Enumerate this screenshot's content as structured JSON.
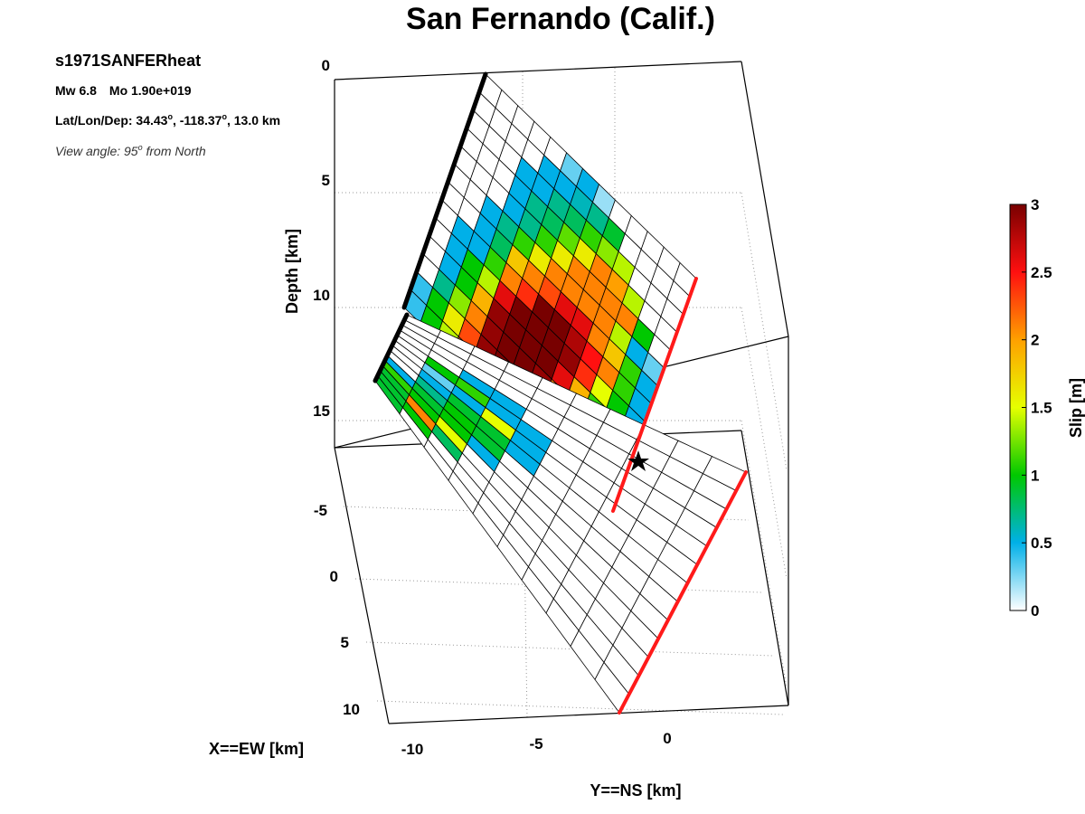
{
  "title": "San Fernando (Calif.)",
  "info": {
    "event_id": "s1971SANFERheat",
    "magnitude": "Mw 6.8",
    "moment": "Mo 1.90e+019",
    "location_prefix": "Lat/Lon/Dep: 34.43",
    "location_mid1": ", -118.37",
    "location_suffix": ", 13.0 km",
    "degree_mark": "o",
    "view_prefix": "View angle:  95",
    "view_suffix": " from North"
  },
  "colorbar": {
    "label": "Slip [m]",
    "ticks": [
      "0",
      "0.5",
      "1",
      "1.5",
      "2",
      "2.5",
      "3"
    ],
    "max": 3
  },
  "chart_data": {
    "type": "heatmap",
    "title": "San Fernando (Calif.)",
    "zlabel": "Depth [km]",
    "xlabel": "X==EW [km]",
    "ylabel": "Y==NS [km]",
    "z_ticks": [
      "0",
      "5",
      "10",
      "15"
    ],
    "x_ticks": [
      "-5",
      "0",
      "5",
      "10"
    ],
    "y_ticks": [
      "-10",
      "-5",
      "0"
    ],
    "grid": true,
    "colormap": "white-blue-green-yellow-red-darkred",
    "slip_units": "m",
    "segments": [
      {
        "name": "upper",
        "slip": [
          [
            0.4,
            0.4,
            0.0,
            0.0,
            0.0,
            0.0,
            0.0,
            0.0,
            0.0,
            0.0,
            0.0,
            0.0,
            0.0
          ],
          [
            1.0,
            1.0,
            0.7,
            0.5,
            0.5,
            0.5,
            0.0,
            0.0,
            0.0,
            0.0,
            0.0,
            0.0,
            0.0
          ],
          [
            1.4,
            1.6,
            1.3,
            1.0,
            1.0,
            0.5,
            0.5,
            0.5,
            0.0,
            0.0,
            0.0,
            0.0,
            0.0
          ],
          [
            2.1,
            2.3,
            2.1,
            1.9,
            1.4,
            1.1,
            0.8,
            0.7,
            0.5,
            0.5,
            0.5,
            0.0,
            0.0
          ],
          [
            2.4,
            2.9,
            2.9,
            2.9,
            2.6,
            2.1,
            1.8,
            1.1,
            0.7,
            0.7,
            0.5,
            0.5,
            0.0
          ],
          [
            2.6,
            3.0,
            3.0,
            3.0,
            3.0,
            2.4,
            2.1,
            1.6,
            1.1,
            0.8,
            0.7,
            0.5,
            0.3
          ],
          [
            2.3,
            3.0,
            3.0,
            3.0,
            3.0,
            3.0,
            2.3,
            2.1,
            1.6,
            1.2,
            0.8,
            0.6,
            0.5
          ],
          [
            1.5,
            2.1,
            2.9,
            3.0,
            3.0,
            3.0,
            2.6,
            2.1,
            2.1,
            1.6,
            1.1,
            0.7,
            0.2
          ],
          [
            1.0,
            1.3,
            2.1,
            2.6,
            2.9,
            2.8,
            2.6,
            2.1,
            2.1,
            2.1,
            1.3,
            0.9,
            0.0
          ],
          [
            0.5,
            0.7,
            1.2,
            1.9,
            2.4,
            2.5,
            2.1,
            2.1,
            2.1,
            2.0,
            1.4,
            0.0,
            0.0
          ],
          [
            0.5,
            0.5,
            0.8,
            1.1,
            1.5,
            2.1,
            1.8,
            1.4,
            2.1,
            1.4,
            0.0,
            0.0,
            0.0
          ],
          [
            0.0,
            0.0,
            0.5,
            0.7,
            1.0,
            1.1,
            1.1,
            0.5,
            1.0,
            0.0,
            0.0,
            0.0,
            0.0
          ],
          [
            0.0,
            0.0,
            0.0,
            0.0,
            0.5,
            0.5,
            0.5,
            0.3,
            0.0,
            0.0,
            0.0,
            0.0,
            0.0
          ]
        ]
      },
      {
        "name": "lower",
        "slip": [
          [
            0.9,
            0.9,
            0.9,
            1.1,
            0.5,
            0.0,
            0.0,
            0.0,
            0.0,
            0.0,
            0.0,
            0.0,
            0.0
          ],
          [
            0.0,
            1.0,
            2.1,
            1.0,
            0.9,
            0.7,
            0.5,
            0.3,
            1.0,
            0.0,
            0.0,
            0.0,
            0.0
          ],
          [
            0.0,
            0.0,
            0.8,
            1.5,
            1.0,
            1.0,
            0.9,
            0.5,
            1.1,
            0.5,
            0.0,
            0.0,
            0.0
          ],
          [
            0.0,
            0.0,
            0.0,
            0.0,
            0.5,
            0.9,
            0.9,
            1.5,
            0.5,
            0.5,
            0.0,
            0.0,
            0.0
          ],
          [
            0.0,
            0.0,
            0.0,
            0.0,
            0.0,
            0.0,
            0.5,
            0.5,
            0.5,
            0.0,
            0.0,
            0.0,
            0.0
          ],
          [
            0.0,
            0.0,
            0.0,
            0.0,
            0.0,
            0.0,
            0.0,
            0.0,
            0.0,
            0.0,
            0.0,
            0.0,
            0.0
          ],
          [
            0.0,
            0.0,
            0.0,
            0.0,
            0.0,
            0.0,
            0.0,
            0.0,
            0.0,
            0.0,
            0.0,
            0.0,
            0.0
          ],
          [
            0.0,
            0.0,
            0.0,
            0.0,
            0.0,
            0.0,
            0.0,
            0.0,
            0.0,
            0.0,
            0.0,
            0.0,
            0.0
          ],
          [
            0.0,
            0.0,
            0.0,
            0.0,
            0.0,
            0.0,
            0.0,
            0.0,
            0.0,
            0.0,
            0.0,
            0.0,
            0.0
          ],
          [
            0.0,
            0.0,
            0.0,
            0.0,
            0.0,
            0.0,
            0.0,
            0.0,
            0.0,
            0.0,
            0.0,
            0.0,
            0.0
          ]
        ]
      }
    ]
  }
}
